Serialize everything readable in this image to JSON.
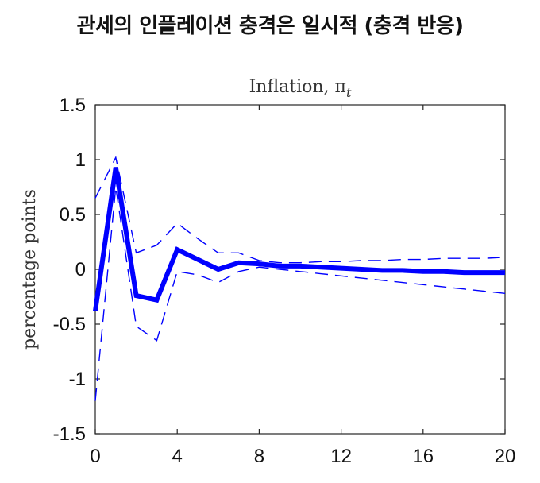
{
  "page": {
    "title": "관세의 인플레이션 충격은 일시적 (충격 반응)"
  },
  "chart_data": {
    "type": "line",
    "title": "Inflation, π",
    "title_subscript": "t",
    "xlabel": "",
    "ylabel": "percentage points",
    "xlim": [
      0,
      20
    ],
    "ylim": [
      -1.5,
      1.5
    ],
    "xticks": [
      0,
      4,
      8,
      12,
      16,
      20
    ],
    "yticks": [
      -1.5,
      -1,
      -0.5,
      0,
      0.5,
      1,
      1.5
    ],
    "ytick_labels": [
      "-1.5",
      "-1",
      "-0.5",
      "0",
      "0.5",
      "1",
      "1.5"
    ],
    "grid": false,
    "color": "#0000ff",
    "x": [
      0,
      1,
      2,
      3,
      4,
      5,
      6,
      7,
      8,
      9,
      10,
      11,
      12,
      13,
      14,
      15,
      16,
      17,
      18,
      19,
      20
    ],
    "series": [
      {
        "role": "estimate",
        "style": "solid",
        "values": [
          -0.38,
          0.93,
          -0.24,
          -0.28,
          0.18,
          0.09,
          0.0,
          0.06,
          0.05,
          0.03,
          0.03,
          0.02,
          0.01,
          0.0,
          -0.01,
          -0.01,
          -0.02,
          -0.02,
          -0.03,
          -0.03,
          -0.03
        ]
      },
      {
        "role": "upper-band",
        "style": "dashed",
        "values": [
          0.65,
          1.02,
          0.15,
          0.22,
          0.42,
          0.28,
          0.15,
          0.15,
          0.08,
          0.06,
          0.06,
          0.07,
          0.07,
          0.08,
          0.08,
          0.09,
          0.09,
          0.1,
          0.1,
          0.1,
          0.11
        ]
      },
      {
        "role": "lower-band",
        "style": "dashed",
        "values": [
          -1.2,
          0.75,
          -0.52,
          -0.65,
          -0.02,
          -0.05,
          -0.12,
          -0.02,
          0.02,
          0.0,
          -0.02,
          -0.04,
          -0.06,
          -0.08,
          -0.1,
          -0.12,
          -0.14,
          -0.16,
          -0.18,
          -0.2,
          -0.22
        ]
      }
    ]
  }
}
